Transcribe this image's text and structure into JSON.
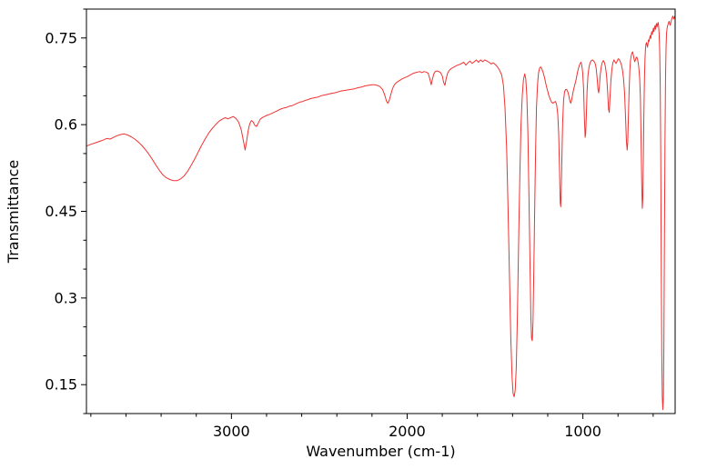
{
  "chart_data": {
    "type": "line",
    "title": "",
    "xlabel": "Wavenumber (cm-1)",
    "ylabel": "Transmittance",
    "x_axis_reversed": true,
    "xlim": [
      3825,
      475
    ],
    "ylim": [
      0.1,
      0.8
    ],
    "x_ticks": [
      3000,
      2000,
      1000
    ],
    "x_tick_labels": [
      "3000",
      "2000",
      "1000"
    ],
    "y_ticks": [
      0.15,
      0.3,
      0.45,
      0.6,
      0.75
    ],
    "y_tick_labels": [
      "0.15",
      "0.3",
      "0.45",
      "0.6",
      "0.75"
    ],
    "x_minor_tick_step": 200,
    "y_minor_tick_step": 0.05,
    "grid": false,
    "legend": false,
    "line_color": "#f03232",
    "axis_color": "#000000",
    "background": "#ffffff",
    "points": [
      [
        3825,
        0.563
      ],
      [
        3800,
        0.566
      ],
      [
        3770,
        0.569
      ],
      [
        3740,
        0.572
      ],
      [
        3710,
        0.576
      ],
      [
        3690,
        0.575
      ],
      [
        3670,
        0.578
      ],
      [
        3650,
        0.581
      ],
      [
        3630,
        0.583
      ],
      [
        3610,
        0.584
      ],
      [
        3590,
        0.582
      ],
      [
        3570,
        0.579
      ],
      [
        3550,
        0.575
      ],
      [
        3530,
        0.57
      ],
      [
        3510,
        0.564
      ],
      [
        3490,
        0.557
      ],
      [
        3470,
        0.549
      ],
      [
        3450,
        0.54
      ],
      [
        3430,
        0.53
      ],
      [
        3410,
        0.521
      ],
      [
        3390,
        0.513
      ],
      [
        3370,
        0.508
      ],
      [
        3350,
        0.505
      ],
      [
        3330,
        0.503
      ],
      [
        3310,
        0.503
      ],
      [
        3290,
        0.506
      ],
      [
        3270,
        0.511
      ],
      [
        3250,
        0.519
      ],
      [
        3230,
        0.529
      ],
      [
        3210,
        0.54
      ],
      [
        3190,
        0.552
      ],
      [
        3170,
        0.564
      ],
      [
        3150,
        0.575
      ],
      [
        3130,
        0.585
      ],
      [
        3110,
        0.593
      ],
      [
        3090,
        0.6
      ],
      [
        3070,
        0.606
      ],
      [
        3050,
        0.61
      ],
      [
        3035,
        0.612
      ],
      [
        3020,
        0.61
      ],
      [
        3005,
        0.612
      ],
      [
        2990,
        0.614
      ],
      [
        2975,
        0.611
      ],
      [
        2960,
        0.605
      ],
      [
        2945,
        0.592
      ],
      [
        2932,
        0.572
      ],
      [
        2922,
        0.556
      ],
      [
        2914,
        0.57
      ],
      [
        2905,
        0.589
      ],
      [
        2896,
        0.601
      ],
      [
        2887,
        0.607
      ],
      [
        2877,
        0.605
      ],
      [
        2867,
        0.599
      ],
      [
        2857,
        0.597
      ],
      [
        2847,
        0.603
      ],
      [
        2835,
        0.61
      ],
      [
        2820,
        0.613
      ],
      [
        2800,
        0.616
      ],
      [
        2780,
        0.618
      ],
      [
        2760,
        0.621
      ],
      [
        2740,
        0.624
      ],
      [
        2720,
        0.627
      ],
      [
        2700,
        0.629
      ],
      [
        2685,
        0.63
      ],
      [
        2670,
        0.632
      ],
      [
        2655,
        0.633
      ],
      [
        2640,
        0.635
      ],
      [
        2625,
        0.637
      ],
      [
        2610,
        0.639
      ],
      [
        2595,
        0.64
      ],
      [
        2580,
        0.642
      ],
      [
        2565,
        0.643
      ],
      [
        2550,
        0.645
      ],
      [
        2535,
        0.646
      ],
      [
        2520,
        0.647
      ],
      [
        2505,
        0.648
      ],
      [
        2490,
        0.65
      ],
      [
        2475,
        0.651
      ],
      [
        2460,
        0.652
      ],
      [
        2445,
        0.653
      ],
      [
        2430,
        0.654
      ],
      [
        2415,
        0.655
      ],
      [
        2400,
        0.656
      ],
      [
        2380,
        0.658
      ],
      [
        2360,
        0.659
      ],
      [
        2340,
        0.66
      ],
      [
        2320,
        0.661
      ],
      [
        2300,
        0.662
      ],
      [
        2280,
        0.664
      ],
      [
        2260,
        0.665
      ],
      [
        2240,
        0.667
      ],
      [
        2220,
        0.668
      ],
      [
        2200,
        0.669
      ],
      [
        2185,
        0.669
      ],
      [
        2170,
        0.668
      ],
      [
        2155,
        0.666
      ],
      [
        2140,
        0.661
      ],
      [
        2128,
        0.652
      ],
      [
        2118,
        0.641
      ],
      [
        2110,
        0.637
      ],
      [
        2102,
        0.642
      ],
      [
        2094,
        0.651
      ],
      [
        2086,
        0.66
      ],
      [
        2078,
        0.666
      ],
      [
        2070,
        0.67
      ],
      [
        2060,
        0.673
      ],
      [
        2045,
        0.676
      ],
      [
        2030,
        0.679
      ],
      [
        2015,
        0.681
      ],
      [
        2000,
        0.683
      ],
      [
        1988,
        0.685
      ],
      [
        1976,
        0.687
      ],
      [
        1964,
        0.689
      ],
      [
        1952,
        0.69
      ],
      [
        1940,
        0.691
      ],
      [
        1928,
        0.692
      ],
      [
        1916,
        0.69
      ],
      [
        1904,
        0.692
      ],
      [
        1892,
        0.691
      ],
      [
        1880,
        0.689
      ],
      [
        1871,
        0.679
      ],
      [
        1863,
        0.669
      ],
      [
        1856,
        0.679
      ],
      [
        1848,
        0.688
      ],
      [
        1840,
        0.692
      ],
      [
        1830,
        0.693
      ],
      [
        1820,
        0.692
      ],
      [
        1810,
        0.69
      ],
      [
        1800,
        0.684
      ],
      [
        1792,
        0.673
      ],
      [
        1785,
        0.668
      ],
      [
        1778,
        0.679
      ],
      [
        1770,
        0.689
      ],
      [
        1760,
        0.694
      ],
      [
        1750,
        0.697
      ],
      [
        1738,
        0.699
      ],
      [
        1726,
        0.701
      ],
      [
        1714,
        0.703
      ],
      [
        1702,
        0.704
      ],
      [
        1690,
        0.706
      ],
      [
        1678,
        0.708
      ],
      [
        1666,
        0.703
      ],
      [
        1654,
        0.707
      ],
      [
        1642,
        0.71
      ],
      [
        1630,
        0.706
      ],
      [
        1618,
        0.709
      ],
      [
        1606,
        0.712
      ],
      [
        1594,
        0.708
      ],
      [
        1582,
        0.712
      ],
      [
        1570,
        0.709
      ],
      [
        1558,
        0.712
      ],
      [
        1546,
        0.71
      ],
      [
        1534,
        0.708
      ],
      [
        1522,
        0.705
      ],
      [
        1510,
        0.707
      ],
      [
        1498,
        0.704
      ],
      [
        1486,
        0.7
      ],
      [
        1474,
        0.694
      ],
      [
        1462,
        0.686
      ],
      [
        1452,
        0.668
      ],
      [
        1443,
        0.63
      ],
      [
        1434,
        0.56
      ],
      [
        1426,
        0.46
      ],
      [
        1418,
        0.34
      ],
      [
        1410,
        0.23
      ],
      [
        1403,
        0.163
      ],
      [
        1397,
        0.135
      ],
      [
        1391,
        0.129
      ],
      [
        1385,
        0.14
      ],
      [
        1379,
        0.18
      ],
      [
        1373,
        0.265
      ],
      [
        1366,
        0.39
      ],
      [
        1359,
        0.51
      ],
      [
        1352,
        0.6
      ],
      [
        1345,
        0.65
      ],
      [
        1338,
        0.678
      ],
      [
        1331,
        0.688
      ],
      [
        1325,
        0.68
      ],
      [
        1319,
        0.65
      ],
      [
        1313,
        0.585
      ],
      [
        1307,
        0.48
      ],
      [
        1301,
        0.36
      ],
      [
        1296,
        0.27
      ],
      [
        1292,
        0.23
      ],
      [
        1288,
        0.226
      ],
      [
        1284,
        0.26
      ],
      [
        1279,
        0.35
      ],
      [
        1274,
        0.46
      ],
      [
        1269,
        0.56
      ],
      [
        1264,
        0.63
      ],
      [
        1258,
        0.67
      ],
      [
        1252,
        0.69
      ],
      [
        1246,
        0.698
      ],
      [
        1240,
        0.7
      ],
      [
        1233,
        0.696
      ],
      [
        1226,
        0.69
      ],
      [
        1218,
        0.681
      ],
      [
        1210,
        0.67
      ],
      [
        1202,
        0.66
      ],
      [
        1194,
        0.651
      ],
      [
        1186,
        0.644
      ],
      [
        1178,
        0.639
      ],
      [
        1170,
        0.637
      ],
      [
        1163,
        0.639
      ],
      [
        1156,
        0.64
      ],
      [
        1149,
        0.634
      ],
      [
        1143,
        0.618
      ],
      [
        1138,
        0.585
      ],
      [
        1133,
        0.525
      ],
      [
        1129,
        0.465
      ],
      [
        1126,
        0.458
      ],
      [
        1123,
        0.485
      ],
      [
        1119,
        0.545
      ],
      [
        1115,
        0.605
      ],
      [
        1110,
        0.642
      ],
      [
        1104,
        0.657
      ],
      [
        1098,
        0.661
      ],
      [
        1092,
        0.661
      ],
      [
        1086,
        0.657
      ],
      [
        1080,
        0.65
      ],
      [
        1074,
        0.641
      ],
      [
        1069,
        0.637
      ],
      [
        1064,
        0.642
      ],
      [
        1058,
        0.653
      ],
      [
        1052,
        0.662
      ],
      [
        1045,
        0.67
      ],
      [
        1038,
        0.679
      ],
      [
        1031,
        0.69
      ],
      [
        1024,
        0.699
      ],
      [
        1017,
        0.705
      ],
      [
        1011,
        0.708
      ],
      [
        1006,
        0.703
      ],
      [
        1001,
        0.69
      ],
      [
        996,
        0.662
      ],
      [
        991,
        0.61
      ],
      [
        987,
        0.578
      ],
      [
        984,
        0.585
      ],
      [
        980,
        0.62
      ],
      [
        976,
        0.658
      ],
      [
        971,
        0.686
      ],
      [
        965,
        0.7
      ],
      [
        959,
        0.707
      ],
      [
        952,
        0.711
      ],
      [
        945,
        0.712
      ],
      [
        938,
        0.71
      ],
      [
        931,
        0.707
      ],
      [
        925,
        0.699
      ],
      [
        919,
        0.682
      ],
      [
        914,
        0.661
      ],
      [
        910,
        0.655
      ],
      [
        906,
        0.667
      ],
      [
        901,
        0.687
      ],
      [
        895,
        0.701
      ],
      [
        889,
        0.708
      ],
      [
        883,
        0.711
      ],
      [
        877,
        0.707
      ],
      [
        871,
        0.699
      ],
      [
        865,
        0.684
      ],
      [
        859,
        0.657
      ],
      [
        854,
        0.627
      ],
      [
        850,
        0.621
      ],
      [
        846,
        0.643
      ],
      [
        841,
        0.674
      ],
      [
        835,
        0.696
      ],
      [
        829,
        0.707
      ],
      [
        823,
        0.712
      ],
      [
        817,
        0.709
      ],
      [
        811,
        0.706
      ],
      [
        805,
        0.71
      ],
      [
        799,
        0.714
      ],
      [
        793,
        0.713
      ],
      [
        787,
        0.709
      ],
      [
        781,
        0.704
      ],
      [
        775,
        0.695
      ],
      [
        769,
        0.681
      ],
      [
        763,
        0.656
      ],
      [
        757,
        0.613
      ],
      [
        752,
        0.57
      ],
      [
        748,
        0.556
      ],
      [
        745,
        0.57
      ],
      [
        741,
        0.612
      ],
      [
        737,
        0.657
      ],
      [
        733,
        0.693
      ],
      [
        729,
        0.711
      ],
      [
        725,
        0.719
      ],
      [
        721,
        0.724
      ],
      [
        717,
        0.726
      ],
      [
        713,
        0.721
      ],
      [
        709,
        0.714
      ],
      [
        705,
        0.709
      ],
      [
        701,
        0.712
      ],
      [
        697,
        0.716
      ],
      [
        693,
        0.717
      ],
      [
        689,
        0.713
      ],
      [
        685,
        0.707
      ],
      [
        681,
        0.697
      ],
      [
        677,
        0.681
      ],
      [
        673,
        0.648
      ],
      [
        669,
        0.58
      ],
      [
        665,
        0.498
      ],
      [
        662,
        0.455
      ],
      [
        659,
        0.472
      ],
      [
        656,
        0.533
      ],
      [
        653,
        0.612
      ],
      [
        650,
        0.672
      ],
      [
        647,
        0.711
      ],
      [
        644,
        0.731
      ],
      [
        641,
        0.739
      ],
      [
        638,
        0.742
      ],
      [
        635,
        0.738
      ],
      [
        632,
        0.734
      ],
      [
        629,
        0.742
      ],
      [
        626,
        0.747
      ],
      [
        623,
        0.744
      ],
      [
        620,
        0.75
      ],
      [
        617,
        0.754
      ],
      [
        614,
        0.749
      ],
      [
        611,
        0.756
      ],
      [
        608,
        0.761
      ],
      [
        605,
        0.756
      ],
      [
        602,
        0.762
      ],
      [
        599,
        0.767
      ],
      [
        596,
        0.761
      ],
      [
        593,
        0.767
      ],
      [
        590,
        0.771
      ],
      [
        587,
        0.765
      ],
      [
        584,
        0.771
      ],
      [
        581,
        0.775
      ],
      [
        578,
        0.769
      ],
      [
        575,
        0.774
      ],
      [
        572,
        0.777
      ],
      [
        569,
        0.771
      ],
      [
        566,
        0.758
      ],
      [
        563,
        0.73
      ],
      [
        560,
        0.67
      ],
      [
        557,
        0.545
      ],
      [
        554,
        0.37
      ],
      [
        551,
        0.205
      ],
      [
        548,
        0.128
      ],
      [
        545,
        0.107
      ],
      [
        542,
        0.128
      ],
      [
        539,
        0.215
      ],
      [
        536,
        0.39
      ],
      [
        533,
        0.56
      ],
      [
        530,
        0.675
      ],
      [
        527,
        0.733
      ],
      [
        524,
        0.757
      ],
      [
        521,
        0.766
      ],
      [
        518,
        0.771
      ],
      [
        515,
        0.774
      ],
      [
        512,
        0.777
      ],
      [
        509,
        0.779
      ],
      [
        506,
        0.775
      ],
      [
        503,
        0.772
      ],
      [
        500,
        0.776
      ],
      [
        497,
        0.78
      ],
      [
        494,
        0.783
      ],
      [
        491,
        0.786
      ],
      [
        488,
        0.788
      ],
      [
        485,
        0.785
      ],
      [
        482,
        0.783
      ],
      [
        479,
        0.786
      ],
      [
        476,
        0.788
      ]
    ]
  }
}
